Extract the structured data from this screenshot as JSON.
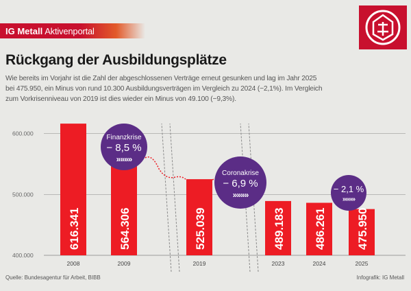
{
  "header": {
    "brand_name": "IG Metall",
    "brand_rest": "Aktivenportal",
    "title": "Rückgang der Ausbildungsplätze",
    "intro": "Wie bereits im Vorjahr ist die Zahl der abgeschlossenen Verträge erneut gesunken und lag im Jahr 2025 bei 475.950, ein Minus von rund 10.300 Ausbildungsverträgen im Vergleich zu 2024 (−2,1%). Im Vergleich zum Vorkrisenniveau von 2019 ist dies wieder ein Minus von 49.100 (−9,3%)."
  },
  "footer": {
    "source": "Quelle: Bundesagentur für Arbeit, BIBB",
    "credit": "Infografik: IG Metall"
  },
  "colors": {
    "bar": "#ed1c24",
    "bubble": "#5b2d86",
    "brand": "#c8102e",
    "background": "#e9e9e6"
  },
  "logo": {
    "icon": "ig-metall-logo-icon"
  },
  "chart_data": {
    "type": "bar",
    "categories": [
      "2008",
      "2009",
      "2019",
      "2023",
      "2024",
      "2025"
    ],
    "values": [
      616341,
      564306,
      525039,
      489183,
      486261,
      475950
    ],
    "value_labels": [
      "616.341",
      "564.306",
      "525.039",
      "489.183",
      "486.261",
      "475.950"
    ],
    "ylim": [
      400000,
      630000
    ],
    "yticks": [
      400000,
      500000,
      600000
    ],
    "ytick_labels": [
      "400.000",
      "500.000",
      "600.000"
    ],
    "grid": true,
    "axis_breaks": [
      "2009-2019",
      "2019-2023"
    ],
    "annotations": [
      {
        "label": "Finanzkrise",
        "value": "− 8,5 %",
        "arrows": "»»»»",
        "between": [
          "2008",
          "2009"
        ]
      },
      {
        "label": "Coronakrise",
        "value": "− 6,9 %",
        "arrows": "»»»»",
        "between": [
          "2019",
          "2023"
        ]
      },
      {
        "label": "",
        "value": "− 2,1 %",
        "arrows": "»»»»",
        "between": [
          "2024",
          "2025"
        ]
      }
    ]
  }
}
